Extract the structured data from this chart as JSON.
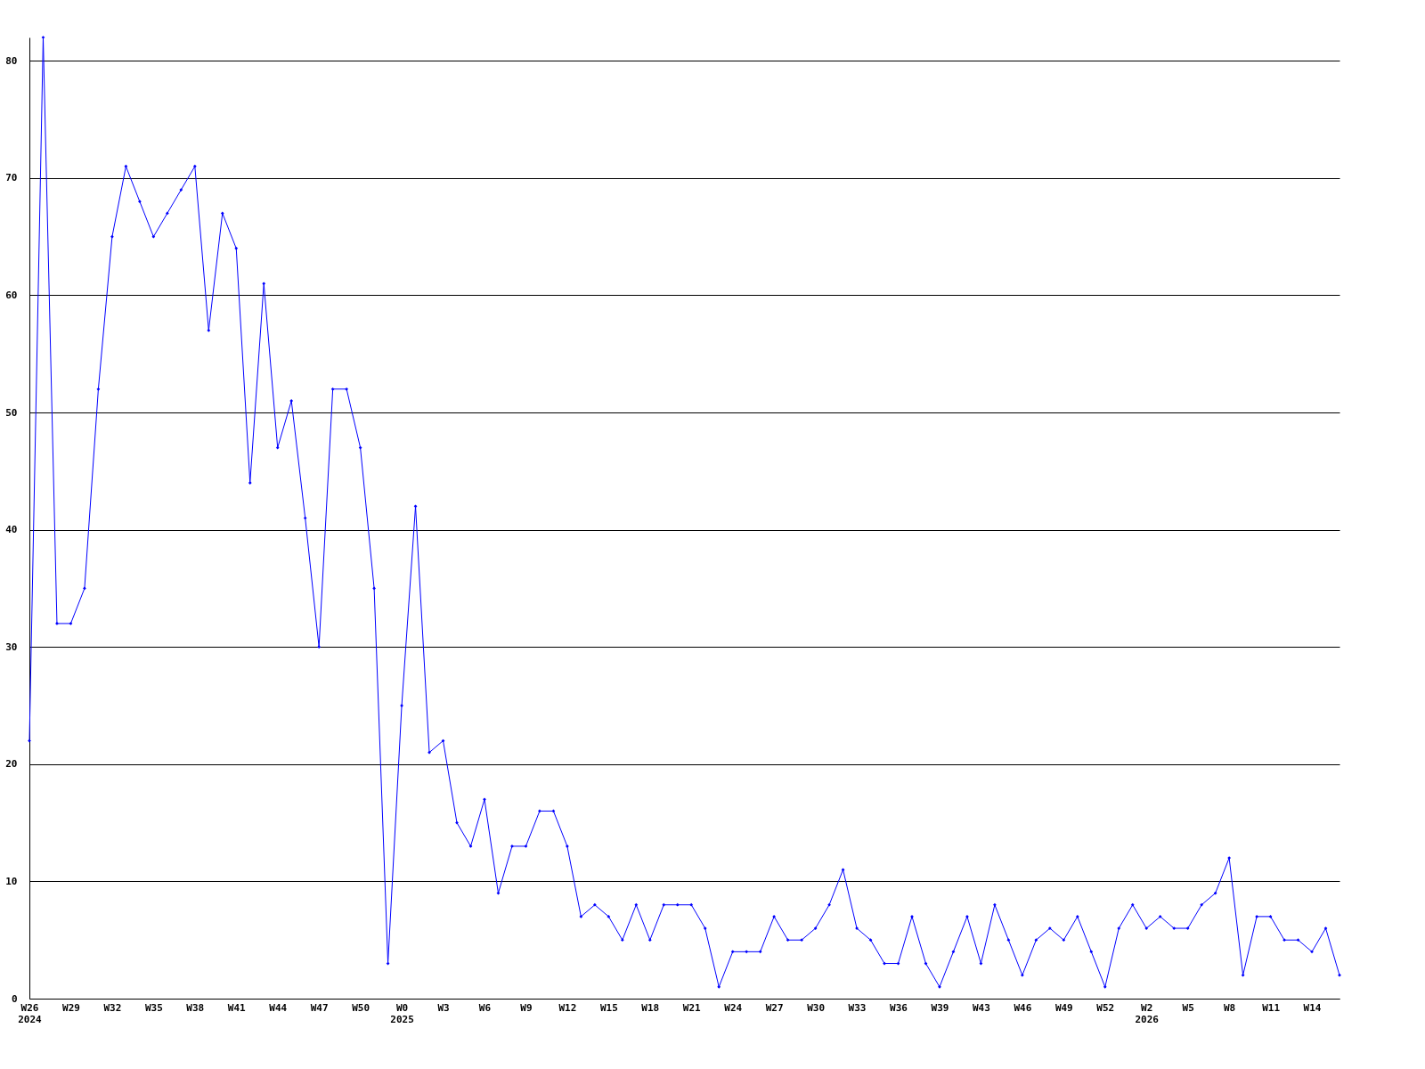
{
  "chart_data": {
    "type": "line",
    "categories": [
      "W26\n2024",
      null,
      null,
      "W29",
      null,
      null,
      "W32",
      null,
      null,
      "W35",
      null,
      null,
      "W38",
      null,
      null,
      "W41",
      null,
      null,
      "W44",
      null,
      null,
      "W47",
      null,
      null,
      "W50",
      null,
      null,
      "W0\n2025",
      null,
      null,
      "W3",
      null,
      null,
      "W6",
      null,
      null,
      "W9",
      null,
      null,
      "W12",
      null,
      null,
      "W15",
      null,
      null,
      "W18",
      null,
      null,
      "W21",
      null,
      null,
      "W24",
      null,
      null,
      "W27",
      null,
      null,
      "W30",
      null,
      null,
      "W33",
      null,
      null,
      "W36",
      null,
      null,
      "W39",
      null,
      null,
      "W43",
      null,
      null,
      "W46",
      null,
      null,
      "W49",
      null,
      null,
      "W52",
      null,
      null,
      "W2\n2026",
      null,
      null,
      "W5",
      null,
      null,
      "W8",
      null,
      null,
      "W11",
      null,
      null,
      "W14",
      null,
      null
    ],
    "series": [
      {
        "color": "#0000ff",
        "values": [
          22,
          82,
          32,
          32,
          35,
          52,
          65,
          71,
          68,
          65,
          67,
          69,
          71,
          57,
          67,
          64,
          44,
          61,
          47,
          51,
          41,
          30,
          52,
          52,
          47,
          35,
          3,
          25,
          42,
          21,
          22,
          15,
          13,
          17,
          9,
          13,
          13,
          16,
          16,
          13,
          7,
          8,
          7,
          5,
          8,
          5,
          8,
          8,
          8,
          6,
          1,
          4,
          4,
          4,
          7,
          5,
          5,
          6,
          8,
          11,
          6,
          5,
          3,
          3,
          7,
          3,
          1,
          4,
          7,
          3,
          8,
          5,
          2,
          5,
          6,
          5,
          7,
          4,
          1,
          6,
          8,
          6,
          7,
          6,
          6,
          8,
          9,
          12,
          2,
          7,
          7,
          5,
          5,
          4,
          6,
          2
        ]
      }
    ],
    "ylim": [
      0,
      82
    ],
    "yticks": [
      0,
      10,
      20,
      30,
      40,
      50,
      60,
      70,
      80
    ],
    "grid": "y",
    "marker": "diamond",
    "line_style": "solid"
  }
}
